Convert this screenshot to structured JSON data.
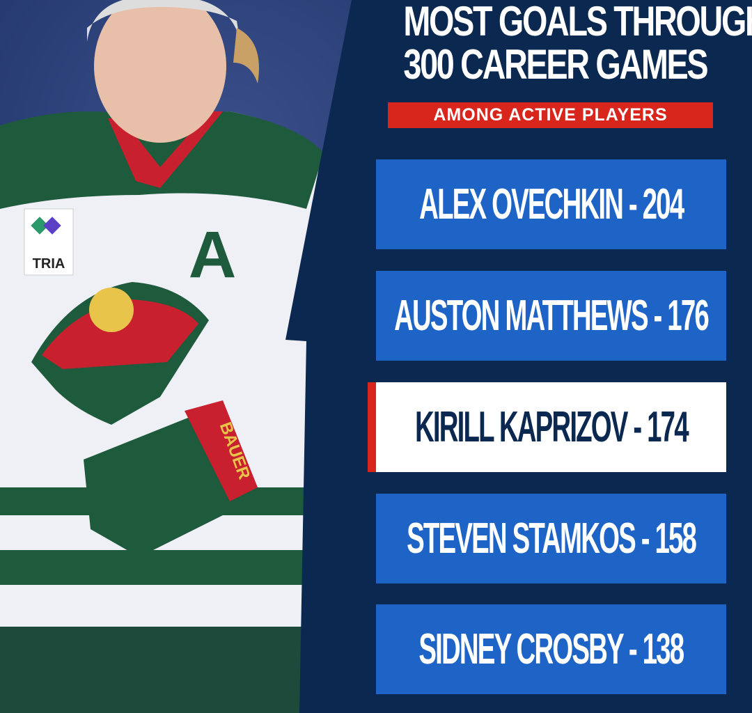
{
  "title_lines": [
    "MOST GOALS THROUGH",
    "300 CAREER GAMES"
  ],
  "subtitle": "AMONG ACTIVE PLAYERS",
  "leaders": [
    {
      "label": "ALEX OVECHKIN - 204",
      "player": "Alex Ovechkin",
      "goals": 204,
      "highlighted": false
    },
    {
      "label": "AUSTON MATTHEWS - 176",
      "player": "Auston Matthews",
      "goals": 176,
      "highlighted": false
    },
    {
      "label": "KIRILL KAPRIZOV - 174",
      "player": "Kirill Kaprizov",
      "goals": 174,
      "highlighted": true
    },
    {
      "label": "STEVEN STAMKOS - 158",
      "player": "Steven Stamkos",
      "goals": 158,
      "highlighted": false
    },
    {
      "label": "SIDNEY CROSBY - 138",
      "player": "Sidney Crosby",
      "goals": 138,
      "highlighted": false
    }
  ],
  "photo": {
    "jersey_letter": "A",
    "sponsor": "TRIA",
    "glove_brand": "BAUER"
  },
  "colors": {
    "navy": "#0b2850",
    "row_blue": "#1e63c6",
    "accent_red": "#d9261c",
    "highlight_bg": "#ffffff",
    "jersey_green": "#1e5a3c"
  }
}
